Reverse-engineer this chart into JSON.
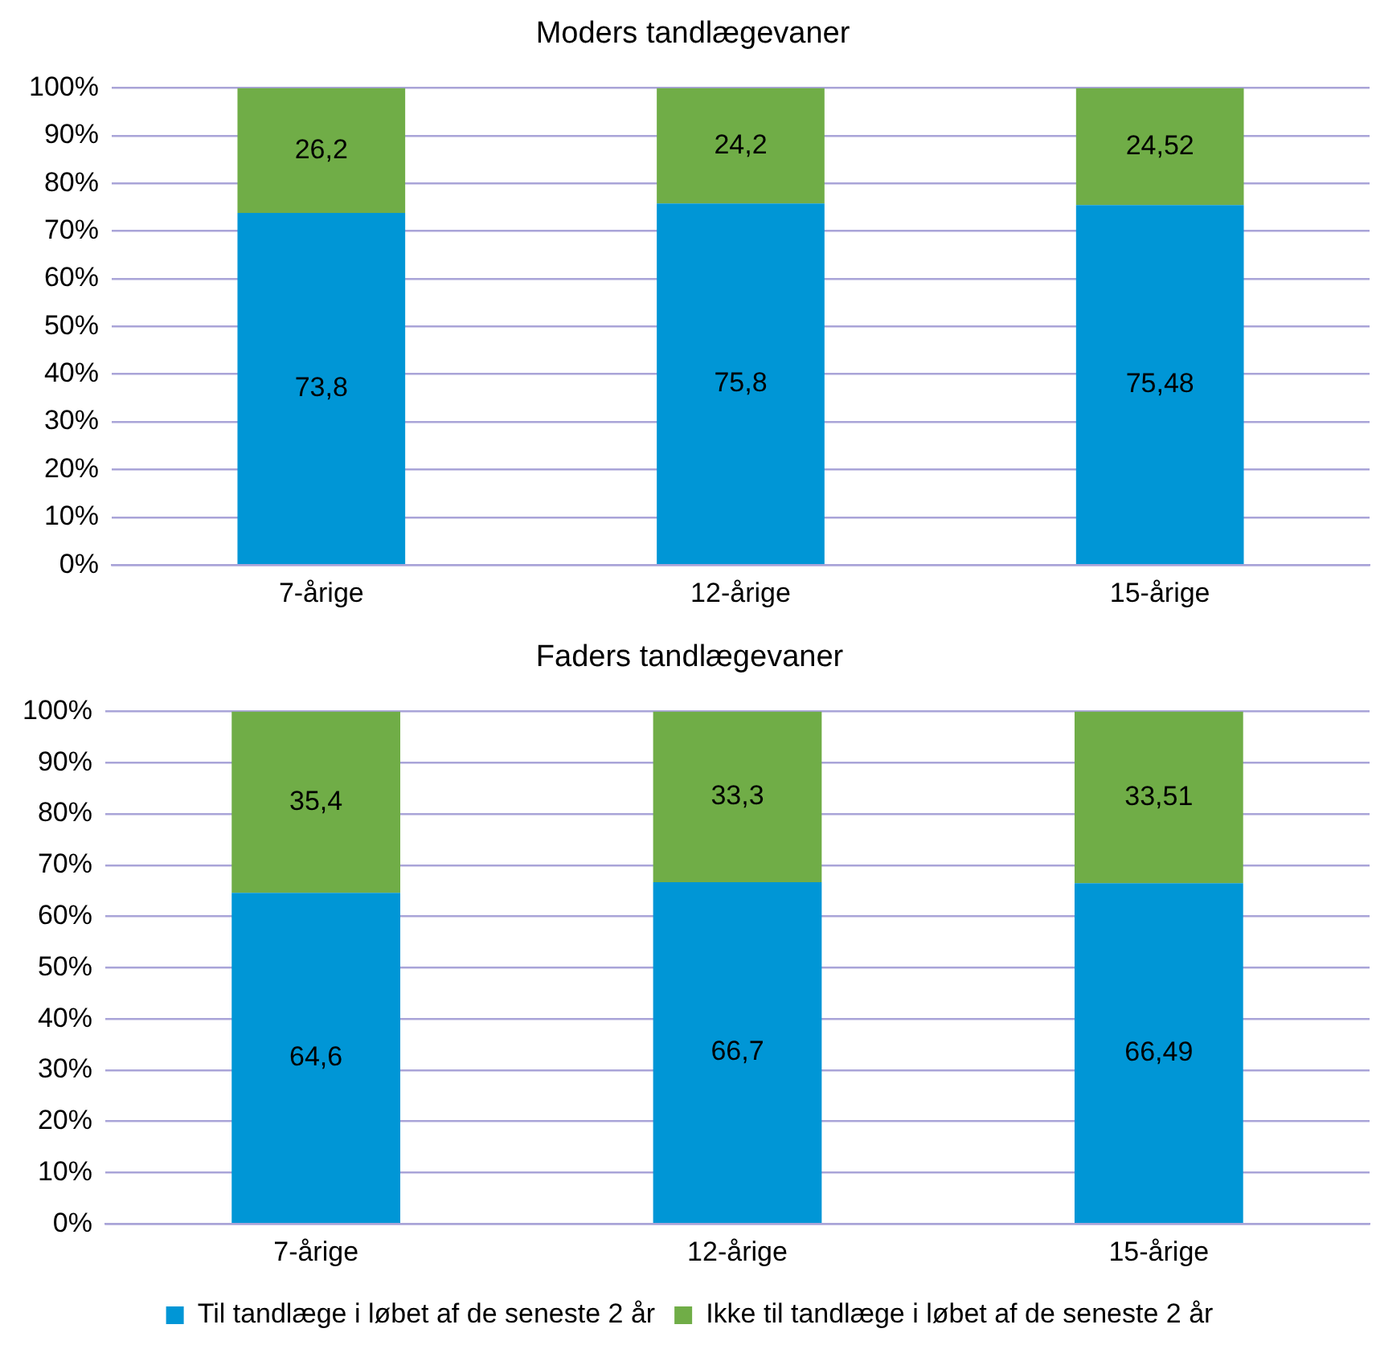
{
  "chart_data": [
    {
      "type": "bar",
      "title": "Moders tandlægevaner",
      "categories": [
        "7-årige",
        "12-årige",
        "15-årige"
      ],
      "stacked": true,
      "series": [
        {
          "color": "#0096d6",
          "values": [
            73.8,
            75.8,
            75.48
          ],
          "value_labels": [
            "73,8",
            "75,8",
            "75,48"
          ]
        },
        {
          "color": "#70ad47",
          "values": [
            26.2,
            24.2,
            24.52
          ],
          "value_labels": [
            "26,2",
            "24,2",
            "24,52"
          ]
        }
      ],
      "ylim": [
        0,
        100
      ],
      "yticks": [
        {
          "value": 0,
          "label": "0%"
        },
        {
          "value": 10,
          "label": "10%"
        },
        {
          "value": 20,
          "label": "20%"
        },
        {
          "value": 30,
          "label": "30%"
        },
        {
          "value": 40,
          "label": "40%"
        },
        {
          "value": 50,
          "label": "50%"
        },
        {
          "value": 60,
          "label": "60%"
        },
        {
          "value": 70,
          "label": "70%"
        },
        {
          "value": 80,
          "label": "80%"
        },
        {
          "value": 90,
          "label": "90%"
        },
        {
          "value": 100,
          "label": "100%"
        }
      ],
      "grid": "y",
      "legend": false
    },
    {
      "type": "bar",
      "title": "Faders tandlægevaner",
      "categories": [
        "7-årige",
        "12-årige",
        "15-årige"
      ],
      "stacked": true,
      "series": [
        {
          "name": "Til tandlæge i løbet af de seneste 2 år",
          "color": "#0096d6",
          "values": [
            64.6,
            66.7,
            66.49
          ],
          "value_labels": [
            "64,6",
            "66,7",
            "66,49"
          ]
        },
        {
          "name": "Ikke til tandlæge i løbet af de seneste 2 år",
          "color": "#70ad47",
          "values": [
            35.4,
            33.3,
            33.51
          ],
          "value_labels": [
            "35,4",
            "33,3",
            "33,51"
          ]
        }
      ],
      "ylim": [
        0,
        100
      ],
      "yticks": [
        {
          "value": 0,
          "label": "0%"
        },
        {
          "value": 10,
          "label": "10%"
        },
        {
          "value": 20,
          "label": "20%"
        },
        {
          "value": 30,
          "label": "30%"
        },
        {
          "value": 40,
          "label": "40%"
        },
        {
          "value": 50,
          "label": "50%"
        },
        {
          "value": 60,
          "label": "60%"
        },
        {
          "value": 70,
          "label": "70%"
        },
        {
          "value": 80,
          "label": "80%"
        },
        {
          "value": 90,
          "label": "90%"
        },
        {
          "value": 100,
          "label": "100%"
        }
      ],
      "grid": "y",
      "legend": "bottom"
    }
  ]
}
